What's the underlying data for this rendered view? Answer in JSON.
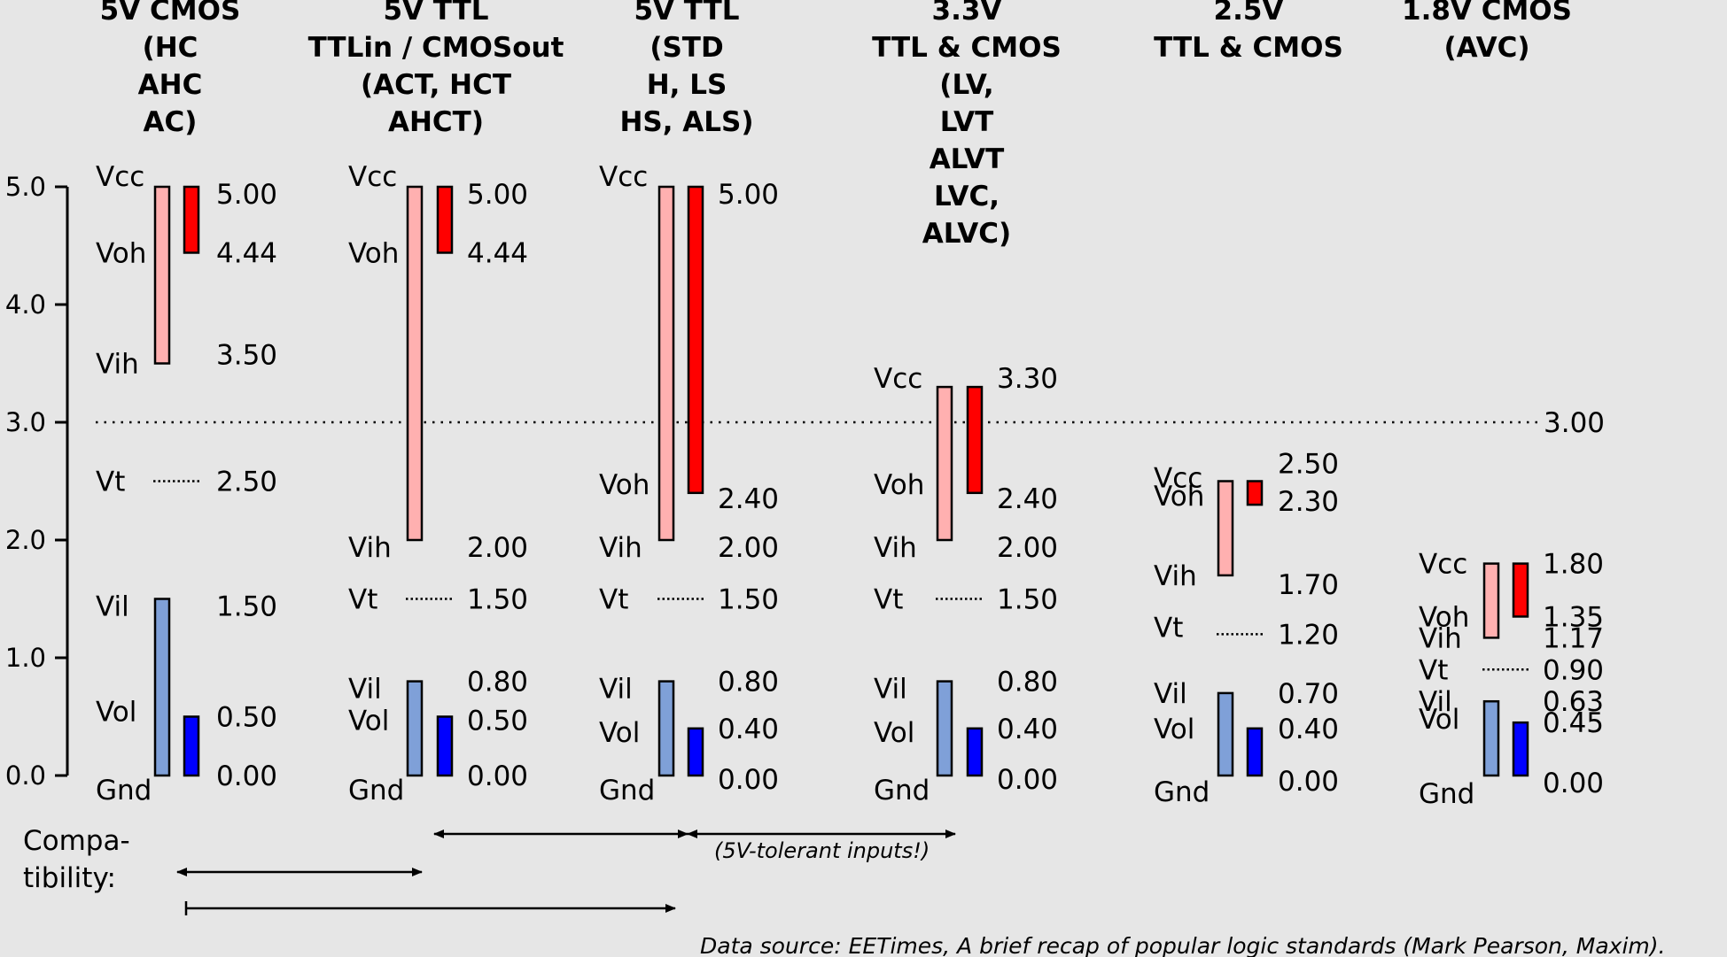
{
  "axis": {
    "ticks": [
      "0.0",
      "1.0",
      "2.0",
      "3.0",
      "4.0",
      "5.0"
    ],
    "ref_line": 3.0,
    "ref_label": "3.00"
  },
  "families": [
    {
      "id": "5v-cmos",
      "header": [
        "5V CMOS",
        "(HC",
        "AHC",
        "AC)"
      ],
      "levels": {
        "vcc": 5.0,
        "voh": 4.44,
        "vih": 3.5,
        "vt": 2.5,
        "vil": 1.5,
        "vol": 0.5
      },
      "labels": [
        {
          "name": "Vcc",
          "value": 5.0,
          "dy": -12
        },
        {
          "name": "Voh",
          "value": 4.44,
          "dy": 0
        },
        {
          "name": "Vih",
          "value": 3.5,
          "dy": 0
        },
        {
          "name": "Vt",
          "value": 2.5,
          "dy": 0
        },
        {
          "name": "Vil",
          "value": 1.5,
          "dy": 8
        },
        {
          "name": "Vol",
          "value": 0.5,
          "dy": -6
        },
        {
          "name": "Gnd",
          "value": 0.0,
          "dy": 16
        }
      ],
      "values": [
        {
          "text": "5.00",
          "value": 5.0,
          "dy": 8
        },
        {
          "text": "4.44",
          "value": 4.44,
          "dy": 0
        },
        {
          "text": "3.50",
          "value": 3.5,
          "dy": -10
        },
        {
          "text": "2.50",
          "value": 2.5,
          "dy": 0
        },
        {
          "text": "1.50",
          "value": 1.5,
          "dy": 8
        },
        {
          "text": "0.50",
          "value": 0.5,
          "dy": 0
        },
        {
          "text": "0.00",
          "value": 0.0,
          "dy": 0
        }
      ]
    },
    {
      "id": "5v-ttl-cmosout",
      "header": [
        "5V TTL",
        "TTLin / CMOSout",
        "(ACT, HCT",
        "AHCT)"
      ],
      "levels": {
        "vcc": 5.0,
        "voh": 4.44,
        "vih": 2.0,
        "vt": 1.5,
        "vil": 0.8,
        "vol": 0.5
      },
      "labels": [
        {
          "name": "Vcc",
          "value": 5.0,
          "dy": -12
        },
        {
          "name": "Voh",
          "value": 4.44,
          "dy": 0
        },
        {
          "name": "Vih",
          "value": 2.0,
          "dy": 8
        },
        {
          "name": "Vt",
          "value": 1.5,
          "dy": 0
        },
        {
          "name": "Vil",
          "value": 0.8,
          "dy": 8
        },
        {
          "name": "Vol",
          "value": 0.5,
          "dy": 4
        },
        {
          "name": "Gnd",
          "value": 0.0,
          "dy": 16
        }
      ],
      "values": [
        {
          "text": "5.00",
          "value": 5.0,
          "dy": 8
        },
        {
          "text": "4.44",
          "value": 4.44,
          "dy": 0
        },
        {
          "text": "2.00",
          "value": 2.0,
          "dy": 8
        },
        {
          "text": "1.50",
          "value": 1.5,
          "dy": 0
        },
        {
          "text": "0.80",
          "value": 0.8,
          "dy": 0
        },
        {
          "text": "0.50",
          "value": 0.5,
          "dy": 4
        },
        {
          "text": "0.00",
          "value": 0.0,
          "dy": 0
        }
      ]
    },
    {
      "id": "5v-ttl-std",
      "header": [
        "5V TTL",
        "(STD",
        "H, LS",
        "HS, ALS)"
      ],
      "levels": {
        "vcc": 5.0,
        "voh": 2.4,
        "vih": 2.0,
        "vt": 1.5,
        "vil": 0.8,
        "vol": 0.4
      },
      "labels": [
        {
          "name": "Vcc",
          "value": 5.0,
          "dy": -12
        },
        {
          "name": "Voh",
          "value": 2.4,
          "dy": -10
        },
        {
          "name": "Vih",
          "value": 2.0,
          "dy": 8
        },
        {
          "name": "Vt",
          "value": 1.5,
          "dy": 0
        },
        {
          "name": "Vil",
          "value": 0.8,
          "dy": 8
        },
        {
          "name": "Vol",
          "value": 0.4,
          "dy": 4
        },
        {
          "name": "Gnd",
          "value": 0.0,
          "dy": 16
        }
      ],
      "values": [
        {
          "text": "5.00",
          "value": 5.0,
          "dy": 8
        },
        {
          "text": "2.40",
          "value": 2.4,
          "dy": 6
        },
        {
          "text": "2.00",
          "value": 2.0,
          "dy": 8
        },
        {
          "text": "1.50",
          "value": 1.5,
          "dy": 0
        },
        {
          "text": "0.80",
          "value": 0.8,
          "dy": 0
        },
        {
          "text": "0.40",
          "value": 0.4,
          "dy": 0
        },
        {
          "text": "0.00",
          "value": 0.0,
          "dy": 4
        }
      ]
    },
    {
      "id": "3v3-ttl-cmos",
      "header": [
        "3.3V",
        "TTL & CMOS",
        "(LV,",
        "LVT",
        "ALVT",
        "LVC,",
        "ALVC)"
      ],
      "levels": {
        "vcc": 3.3,
        "voh": 2.4,
        "vih": 2.0,
        "vt": 1.5,
        "vil": 0.8,
        "vol": 0.4
      },
      "labels": [
        {
          "name": "Vcc",
          "value": 3.3,
          "dy": -10
        },
        {
          "name": "Voh",
          "value": 2.4,
          "dy": -10
        },
        {
          "name": "Vih",
          "value": 2.0,
          "dy": 8
        },
        {
          "name": "Vt",
          "value": 1.5,
          "dy": 0
        },
        {
          "name": "Vil",
          "value": 0.8,
          "dy": 8
        },
        {
          "name": "Vol",
          "value": 0.4,
          "dy": 4
        },
        {
          "name": "Gnd",
          "value": 0.0,
          "dy": 16
        }
      ],
      "values": [
        {
          "text": "3.30",
          "value": 3.3,
          "dy": -10
        },
        {
          "text": "2.40",
          "value": 2.4,
          "dy": 6
        },
        {
          "text": "2.00",
          "value": 2.0,
          "dy": 8
        },
        {
          "text": "1.50",
          "value": 1.5,
          "dy": 0
        },
        {
          "text": "0.80",
          "value": 0.8,
          "dy": 0
        },
        {
          "text": "0.40",
          "value": 0.4,
          "dy": 0
        },
        {
          "text": "0.00",
          "value": 0.0,
          "dy": 4
        }
      ]
    },
    {
      "id": "2v5-ttl-cmos",
      "header": [
        "2.5V",
        "TTL & CMOS"
      ],
      "levels": {
        "vcc": 2.5,
        "voh": 2.3,
        "vih": 1.7,
        "vt": 1.2,
        "vil": 0.7,
        "vol": 0.4
      },
      "labels": [
        {
          "name": "Vcc",
          "value": 2.5,
          "dy": -4
        },
        {
          "name": "Voh",
          "value": 2.3,
          "dy": -10
        },
        {
          "name": "Vih",
          "value": 1.7,
          "dy": 0
        },
        {
          "name": "Vt",
          "value": 1.2,
          "dy": -8
        },
        {
          "name": "Vil",
          "value": 0.7,
          "dy": 0
        },
        {
          "name": "Vol",
          "value": 0.4,
          "dy": 0
        },
        {
          "name": "Gnd",
          "value": 0.0,
          "dy": 18
        }
      ],
      "values": [
        {
          "text": "2.50",
          "value": 2.5,
          "dy": -20
        },
        {
          "text": "2.30",
          "value": 2.3,
          "dy": -4
        },
        {
          "text": "1.70",
          "value": 1.7,
          "dy": 10
        },
        {
          "text": "1.20",
          "value": 1.2,
          "dy": 0
        },
        {
          "text": "0.70",
          "value": 0.7,
          "dy": 0
        },
        {
          "text": "0.40",
          "value": 0.4,
          "dy": 0
        },
        {
          "text": "0.00",
          "value": 0.0,
          "dy": 6
        }
      ]
    },
    {
      "id": "1v8-cmos",
      "header": [
        "1.8V CMOS",
        "(AVC)"
      ],
      "levels": {
        "vcc": 1.8,
        "voh": 1.35,
        "vih": 1.17,
        "vt": 0.9,
        "vil": 0.63,
        "vol": 0.45
      },
      "labels": [
        {
          "name": "Vcc",
          "value": 1.8,
          "dy": 0
        },
        {
          "name": "Voh",
          "value": 1.35,
          "dy": 0
        },
        {
          "name": "Vih",
          "value": 1.17,
          "dy": 0
        },
        {
          "name": "Vt",
          "value": 0.9,
          "dy": 0
        },
        {
          "name": "Vil",
          "value": 0.63,
          "dy": 0
        },
        {
          "name": "Vol",
          "value": 0.45,
          "dy": -4
        },
        {
          "name": "Gnd",
          "value": 0.0,
          "dy": 20
        }
      ],
      "values": [
        {
          "text": "1.80",
          "value": 1.8,
          "dy": 0
        },
        {
          "text": "1.35",
          "value": 1.35,
          "dy": 0
        },
        {
          "text": "1.17",
          "value": 1.17,
          "dy": 0
        },
        {
          "text": "0.90",
          "value": 0.9,
          "dy": 0
        },
        {
          "text": "0.63",
          "value": 0.63,
          "dy": 0
        },
        {
          "text": "0.45",
          "value": 0.45,
          "dy": 0
        },
        {
          "text": "0.00",
          "value": 0.0,
          "dy": 8
        }
      ]
    }
  ],
  "compatibility": {
    "label": [
      "Compa-",
      "tibility:"
    ],
    "note": "(5V-tolerant inputs!)",
    "arrows": [
      {
        "from": "5v-ttl-cmosout",
        "to": "5v-ttl-std",
        "kind": "double"
      },
      {
        "from": "5v-ttl-std",
        "to": "3v3-ttl-cmos",
        "kind": "double"
      },
      {
        "from": "5v-cmos",
        "to": "5v-ttl-cmosout",
        "kind": "double"
      },
      {
        "from": "5v-cmos",
        "to": "5v-ttl-std",
        "kind": "single"
      }
    ]
  },
  "source": "Data source: EETimes, A brief recap of popular logic standards (Mark Pearson, Maxim).",
  "colors": {
    "input_high": "#ffb0b0",
    "output_high": "#ff0000",
    "input_low": "#7fa0d8",
    "output_low": "#0000ff",
    "stroke": "#000000",
    "background": "#e6e6e6"
  }
}
